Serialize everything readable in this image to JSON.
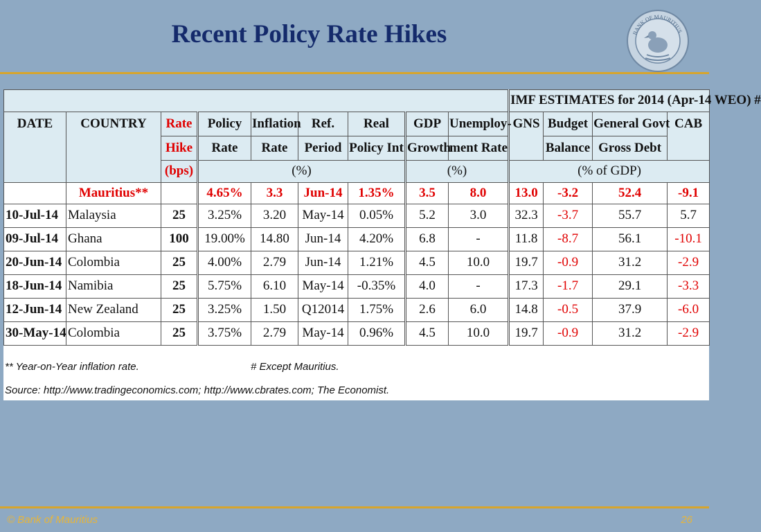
{
  "slide": {
    "title": "Recent Policy Rate Hikes",
    "footer_left": "© Bank of Mauritius",
    "page_number": "26",
    "logo_text": "BANK OF MAURITIUS"
  },
  "table": {
    "imf_header": "IMF ESTIMATES for 2014 (Apr-14 WEO) #",
    "headers": {
      "date": "DATE",
      "country": "COUNTRY",
      "rate_hike_1": "Rate",
      "rate_hike_2": "Hike",
      "rate_hike_3": "(bps)",
      "policy_1": "Policy",
      "policy_2": "Rate",
      "inflation_1": "Inflation",
      "inflation_2": "Rate",
      "ref_1": "Ref.",
      "ref_2": "Period",
      "real_1": "Real",
      "real_2": "Policy Int",
      "gdp_1": "GDP",
      "gdp_2": "Growth",
      "unemp_1": "Unemploy-",
      "unemp_2": "ment Rate",
      "gns": "GNS",
      "budget_1": "Budget",
      "budget_2": "Balance",
      "debt_1": "General Govt",
      "debt_2": "Gross Debt",
      "cab": "CAB"
    },
    "units": {
      "pct_a": "(%)",
      "pct_b": "(%)",
      "pct_gdp": "(% of GDP)"
    },
    "mauritius": {
      "country": "Mauritius**",
      "policy_rate": "4.65%",
      "inflation": "3.3",
      "ref_period": "Jun-14",
      "real_int": "1.35%",
      "gdp_growth": "3.5",
      "unemployment": "8.0",
      "gns": "13.0",
      "budget_balance": "-3.2",
      "gross_debt": "52.4",
      "cab": "-9.1"
    },
    "rows": [
      {
        "date": "10-Jul-14",
        "country": "Malaysia",
        "hike": "25",
        "policy_rate": "3.25%",
        "inflation": "3.20",
        "ref_period": "May-14",
        "real_int": "0.05%",
        "gdp_growth": "5.2",
        "unemployment": "3.0",
        "gns": "32.3",
        "budget_balance": "-3.7",
        "gross_debt": "55.7",
        "cab": "5.7"
      },
      {
        "date": "09-Jul-14",
        "country": "Ghana",
        "hike": "100",
        "policy_rate": "19.00%",
        "inflation": "14.80",
        "ref_period": "Jun-14",
        "real_int": "4.20%",
        "gdp_growth": "6.8",
        "unemployment": "-",
        "gns": "11.8",
        "budget_balance": "-8.7",
        "gross_debt": "56.1",
        "cab": "-10.1"
      },
      {
        "date": "20-Jun-14",
        "country": "Colombia",
        "hike": "25",
        "policy_rate": "4.00%",
        "inflation": "2.79",
        "ref_period": "Jun-14",
        "real_int": "1.21%",
        "gdp_growth": "4.5",
        "unemployment": "10.0",
        "gns": "19.7",
        "budget_balance": "-0.9",
        "gross_debt": "31.2",
        "cab": "-2.9"
      },
      {
        "date": "18-Jun-14",
        "country": "Namibia",
        "hike": "25",
        "policy_rate": "5.75%",
        "inflation": "6.10",
        "ref_period": "May-14",
        "real_int": "-0.35%",
        "gdp_growth": "4.0",
        "unemployment": "-",
        "gns": "17.3",
        "budget_balance": "-1.7",
        "gross_debt": "29.1",
        "cab": "-3.3"
      },
      {
        "date": "12-Jun-14",
        "country": "New Zealand",
        "hike": "25",
        "policy_rate": "3.25%",
        "inflation": "1.50",
        "ref_period": "Q12014",
        "real_int": "1.75%",
        "gdp_growth": "2.6",
        "unemployment": "6.0",
        "gns": "14.8",
        "budget_balance": "-0.5",
        "gross_debt": "37.9",
        "cab": "-6.0"
      },
      {
        "date": "30-May-14",
        "country": "Colombia",
        "hike": "25",
        "policy_rate": "3.75%",
        "inflation": "2.79",
        "ref_period": "May-14",
        "real_int": "0.96%",
        "gdp_growth": "4.5",
        "unemployment": "10.0",
        "gns": "19.7",
        "budget_balance": "-0.9",
        "gross_debt": "31.2",
        "cab": "-2.9"
      }
    ],
    "red_colour": "#e00000"
  },
  "notes": {
    "yoy": "** Year-on-Year inflation rate.",
    "except": "# Except Mauritius.",
    "source": "Source: http://www.tradingeconomics.com;  http://www.cbrates.com;  The Economist."
  }
}
